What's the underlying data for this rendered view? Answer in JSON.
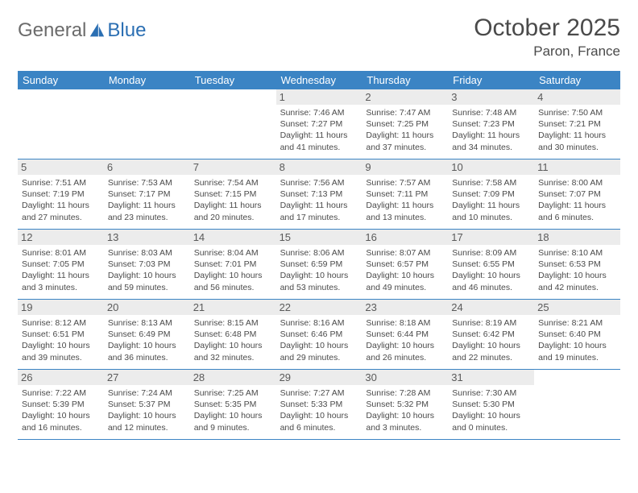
{
  "logo": {
    "text1": "General",
    "text2": "Blue"
  },
  "title": "October 2025",
  "location": "Paron, France",
  "colors": {
    "header_bg": "#3b84c4",
    "header_text": "#ffffff",
    "daynum_bg": "#ececec",
    "border": "#3b84c4",
    "text": "#4a4a4a",
    "logo_gray": "#6b6b6b",
    "logo_blue": "#2b6fb3"
  },
  "weekdays": [
    "Sunday",
    "Monday",
    "Tuesday",
    "Wednesday",
    "Thursday",
    "Friday",
    "Saturday"
  ],
  "weeks": [
    [
      {
        "n": "",
        "sr": "",
        "ss": "",
        "dl": ""
      },
      {
        "n": "",
        "sr": "",
        "ss": "",
        "dl": ""
      },
      {
        "n": "",
        "sr": "",
        "ss": "",
        "dl": ""
      },
      {
        "n": "1",
        "sr": "7:46 AM",
        "ss": "7:27 PM",
        "dl": "11 hours and 41 minutes."
      },
      {
        "n": "2",
        "sr": "7:47 AM",
        "ss": "7:25 PM",
        "dl": "11 hours and 37 minutes."
      },
      {
        "n": "3",
        "sr": "7:48 AM",
        "ss": "7:23 PM",
        "dl": "11 hours and 34 minutes."
      },
      {
        "n": "4",
        "sr": "7:50 AM",
        "ss": "7:21 PM",
        "dl": "11 hours and 30 minutes."
      }
    ],
    [
      {
        "n": "5",
        "sr": "7:51 AM",
        "ss": "7:19 PM",
        "dl": "11 hours and 27 minutes."
      },
      {
        "n": "6",
        "sr": "7:53 AM",
        "ss": "7:17 PM",
        "dl": "11 hours and 23 minutes."
      },
      {
        "n": "7",
        "sr": "7:54 AM",
        "ss": "7:15 PM",
        "dl": "11 hours and 20 minutes."
      },
      {
        "n": "8",
        "sr": "7:56 AM",
        "ss": "7:13 PM",
        "dl": "11 hours and 17 minutes."
      },
      {
        "n": "9",
        "sr": "7:57 AM",
        "ss": "7:11 PM",
        "dl": "11 hours and 13 minutes."
      },
      {
        "n": "10",
        "sr": "7:58 AM",
        "ss": "7:09 PM",
        "dl": "11 hours and 10 minutes."
      },
      {
        "n": "11",
        "sr": "8:00 AM",
        "ss": "7:07 PM",
        "dl": "11 hours and 6 minutes."
      }
    ],
    [
      {
        "n": "12",
        "sr": "8:01 AM",
        "ss": "7:05 PM",
        "dl": "11 hours and 3 minutes."
      },
      {
        "n": "13",
        "sr": "8:03 AM",
        "ss": "7:03 PM",
        "dl": "10 hours and 59 minutes."
      },
      {
        "n": "14",
        "sr": "8:04 AM",
        "ss": "7:01 PM",
        "dl": "10 hours and 56 minutes."
      },
      {
        "n": "15",
        "sr": "8:06 AM",
        "ss": "6:59 PM",
        "dl": "10 hours and 53 minutes."
      },
      {
        "n": "16",
        "sr": "8:07 AM",
        "ss": "6:57 PM",
        "dl": "10 hours and 49 minutes."
      },
      {
        "n": "17",
        "sr": "8:09 AM",
        "ss": "6:55 PM",
        "dl": "10 hours and 46 minutes."
      },
      {
        "n": "18",
        "sr": "8:10 AM",
        "ss": "6:53 PM",
        "dl": "10 hours and 42 minutes."
      }
    ],
    [
      {
        "n": "19",
        "sr": "8:12 AM",
        "ss": "6:51 PM",
        "dl": "10 hours and 39 minutes."
      },
      {
        "n": "20",
        "sr": "8:13 AM",
        "ss": "6:49 PM",
        "dl": "10 hours and 36 minutes."
      },
      {
        "n": "21",
        "sr": "8:15 AM",
        "ss": "6:48 PM",
        "dl": "10 hours and 32 minutes."
      },
      {
        "n": "22",
        "sr": "8:16 AM",
        "ss": "6:46 PM",
        "dl": "10 hours and 29 minutes."
      },
      {
        "n": "23",
        "sr": "8:18 AM",
        "ss": "6:44 PM",
        "dl": "10 hours and 26 minutes."
      },
      {
        "n": "24",
        "sr": "8:19 AM",
        "ss": "6:42 PM",
        "dl": "10 hours and 22 minutes."
      },
      {
        "n": "25",
        "sr": "8:21 AM",
        "ss": "6:40 PM",
        "dl": "10 hours and 19 minutes."
      }
    ],
    [
      {
        "n": "26",
        "sr": "7:22 AM",
        "ss": "5:39 PM",
        "dl": "10 hours and 16 minutes."
      },
      {
        "n": "27",
        "sr": "7:24 AM",
        "ss": "5:37 PM",
        "dl": "10 hours and 12 minutes."
      },
      {
        "n": "28",
        "sr": "7:25 AM",
        "ss": "5:35 PM",
        "dl": "10 hours and 9 minutes."
      },
      {
        "n": "29",
        "sr": "7:27 AM",
        "ss": "5:33 PM",
        "dl": "10 hours and 6 minutes."
      },
      {
        "n": "30",
        "sr": "7:28 AM",
        "ss": "5:32 PM",
        "dl": "10 hours and 3 minutes."
      },
      {
        "n": "31",
        "sr": "7:30 AM",
        "ss": "5:30 PM",
        "dl": "10 hours and 0 minutes."
      },
      {
        "n": "",
        "sr": "",
        "ss": "",
        "dl": ""
      }
    ]
  ],
  "labels": {
    "sunrise": "Sunrise:",
    "sunset": "Sunset:",
    "daylight": "Daylight:"
  }
}
